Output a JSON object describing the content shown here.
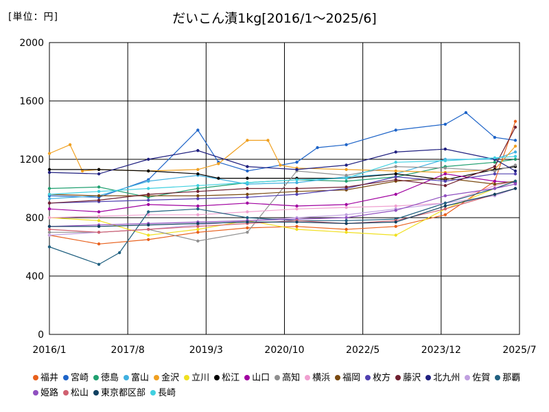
{
  "unit_label": "[単位：円]",
  "chart_data": {
    "type": "line",
    "title": "だいこん漬1kg[2016/1～2025/6]",
    "x_ticks": [
      "2016/1",
      "2017/8",
      "2019/3",
      "2020/10",
      "2022/5",
      "2023/12",
      "2025/7"
    ],
    "y_ticks": [
      0,
      400,
      800,
      1200,
      1600,
      2000
    ],
    "ylim": [
      0,
      2000
    ],
    "xlim": [
      "2016-01",
      "2025-07"
    ],
    "grid": true,
    "legend_position": "bottom",
    "series": [
      {
        "name": "福井",
        "color": "#e8601c",
        "points": [
          [
            "2016-01",
            680
          ],
          [
            "2017-01",
            620
          ],
          [
            "2018-01",
            650
          ],
          [
            "2019-01",
            700
          ],
          [
            "2020-01",
            730
          ],
          [
            "2021-01",
            740
          ],
          [
            "2022-01",
            720
          ],
          [
            "2023-01",
            740
          ],
          [
            "2024-01",
            820
          ],
          [
            "2025-01",
            1050
          ],
          [
            "2025-06",
            1460
          ]
        ]
      },
      {
        "name": "宮崎",
        "color": "#1e64c8",
        "points": [
          [
            "2016-01",
            950
          ],
          [
            "2017-01",
            940
          ],
          [
            "2018-01",
            1060
          ],
          [
            "2019-01",
            1400
          ],
          [
            "2019-06",
            1180
          ],
          [
            "2020-01",
            1120
          ],
          [
            "2021-01",
            1180
          ],
          [
            "2021-06",
            1280
          ],
          [
            "2022-01",
            1300
          ],
          [
            "2023-01",
            1400
          ],
          [
            "2024-01",
            1440
          ],
          [
            "2024-06",
            1520
          ],
          [
            "2025-01",
            1350
          ],
          [
            "2025-06",
            1330
          ]
        ]
      },
      {
        "name": "徳島",
        "color": "#20a070",
        "points": [
          [
            "2016-01",
            1000
          ],
          [
            "2017-01",
            1010
          ],
          [
            "2018-01",
            940
          ],
          [
            "2019-01",
            1000
          ],
          [
            "2020-01",
            1040
          ],
          [
            "2021-01",
            1060
          ],
          [
            "2022-01",
            1050
          ],
          [
            "2023-01",
            1080
          ],
          [
            "2024-01",
            1150
          ],
          [
            "2025-01",
            1180
          ],
          [
            "2025-06",
            1200
          ]
        ]
      },
      {
        "name": "富山",
        "color": "#40b0e0",
        "points": [
          [
            "2016-01",
            930
          ],
          [
            "2017-01",
            950
          ],
          [
            "2018-01",
            1050
          ],
          [
            "2019-01",
            1090
          ],
          [
            "2020-01",
            1030
          ],
          [
            "2021-01",
            1040
          ],
          [
            "2022-01",
            1080
          ],
          [
            "2023-01",
            1100
          ],
          [
            "2024-01",
            1200
          ],
          [
            "2025-01",
            1200
          ],
          [
            "2025-06",
            1250
          ]
        ]
      },
      {
        "name": "金沢",
        "color": "#f0a020",
        "points": [
          [
            "2016-01",
            1240
          ],
          [
            "2016-06",
            1300
          ],
          [
            "2016-09",
            1120
          ],
          [
            "2017-01",
            1130
          ],
          [
            "2018-01",
            1120
          ],
          [
            "2019-01",
            1130
          ],
          [
            "2019-06",
            1170
          ],
          [
            "2020-01",
            1330
          ],
          [
            "2020-06",
            1330
          ],
          [
            "2020-09",
            1160
          ],
          [
            "2021-01",
            1140
          ],
          [
            "2022-01",
            1130
          ],
          [
            "2023-01",
            1120
          ],
          [
            "2024-01",
            1110
          ],
          [
            "2025-01",
            1130
          ],
          [
            "2025-06",
            1290
          ]
        ]
      },
      {
        "name": "立川",
        "color": "#f0e020",
        "points": [
          [
            "2016-01",
            800
          ],
          [
            "2017-01",
            780
          ],
          [
            "2018-01",
            680
          ],
          [
            "2019-01",
            720
          ],
          [
            "2020-01",
            780
          ],
          [
            "2021-01",
            720
          ],
          [
            "2022-01",
            700
          ],
          [
            "2023-01",
            680
          ],
          [
            "2024-01",
            860
          ],
          [
            "2025-01",
            1000
          ],
          [
            "2025-06",
            1050
          ]
        ]
      },
      {
        "name": "松江",
        "color": "#000000",
        "points": [
          [
            "2016-01",
            1130
          ],
          [
            "2017-01",
            1130
          ],
          [
            "2018-01",
            1120
          ],
          [
            "2019-01",
            1100
          ],
          [
            "2019-06",
            1070
          ],
          [
            "2020-01",
            1070
          ],
          [
            "2021-01",
            1070
          ],
          [
            "2022-01",
            1070
          ],
          [
            "2023-01",
            1100
          ],
          [
            "2024-01",
            1060
          ],
          [
            "2025-01",
            1130
          ],
          [
            "2025-06",
            1150
          ]
        ]
      },
      {
        "name": "山口",
        "color": "#a000a0",
        "points": [
          [
            "2016-01",
            860
          ],
          [
            "2017-01",
            840
          ],
          [
            "2018-01",
            890
          ],
          [
            "2019-01",
            880
          ],
          [
            "2020-01",
            900
          ],
          [
            "2021-01",
            880
          ],
          [
            "2022-01",
            890
          ],
          [
            "2023-01",
            960
          ],
          [
            "2024-01",
            1100
          ],
          [
            "2025-01",
            1050
          ],
          [
            "2025-06",
            1040
          ]
        ]
      },
      {
        "name": "高知",
        "color": "#909090",
        "points": [
          [
            "2016-01",
            700
          ],
          [
            "2017-01",
            700
          ],
          [
            "2018-01",
            720
          ],
          [
            "2019-01",
            640
          ],
          [
            "2020-01",
            700
          ],
          [
            "2021-01",
            1120
          ],
          [
            "2022-01",
            1090
          ],
          [
            "2023-01",
            1150
          ],
          [
            "2024-01",
            1140
          ],
          [
            "2025-01",
            1120
          ],
          [
            "2025-06",
            1160
          ]
        ]
      },
      {
        "name": "横浜",
        "color": "#f0a0d0",
        "points": [
          [
            "2016-01",
            800
          ],
          [
            "2017-01",
            810
          ],
          [
            "2018-01",
            820
          ],
          [
            "2019-01",
            820
          ],
          [
            "2020-01",
            840
          ],
          [
            "2021-01",
            860
          ],
          [
            "2022-01",
            870
          ],
          [
            "2023-01",
            880
          ],
          [
            "2024-01",
            900
          ],
          [
            "2025-01",
            1020
          ],
          [
            "2025-06",
            1050
          ]
        ]
      },
      {
        "name": "福岡",
        "color": "#7a4a10",
        "points": [
          [
            "2016-01",
            960
          ],
          [
            "2017-01",
            950
          ],
          [
            "2018-01",
            950
          ],
          [
            "2019-01",
            950
          ],
          [
            "2020-01",
            960
          ],
          [
            "2021-01",
            980
          ],
          [
            "2022-01",
            990
          ],
          [
            "2023-01",
            1050
          ],
          [
            "2024-01",
            1070
          ],
          [
            "2025-01",
            1030
          ],
          [
            "2025-06",
            1050
          ]
        ]
      },
      {
        "name": "枚方",
        "color": "#5040b0",
        "points": [
          [
            "2016-01",
            900
          ],
          [
            "2017-01",
            910
          ],
          [
            "2018-01",
            920
          ],
          [
            "2019-01",
            930
          ],
          [
            "2020-01",
            940
          ],
          [
            "2021-01",
            960
          ],
          [
            "2022-01",
            1000
          ],
          [
            "2023-01",
            1080
          ],
          [
            "2024-01",
            1050
          ],
          [
            "2025-01",
            1100
          ],
          [
            "2025-06",
            1100
          ]
        ]
      },
      {
        "name": "藤沢",
        "color": "#702030",
        "points": [
          [
            "2016-01",
            900
          ],
          [
            "2017-01",
            920
          ],
          [
            "2018-01",
            960
          ],
          [
            "2019-01",
            980
          ],
          [
            "2020-01",
            1000
          ],
          [
            "2021-01",
            1000
          ],
          [
            "2022-01",
            1010
          ],
          [
            "2023-01",
            1060
          ],
          [
            "2024-01",
            1020
          ],
          [
            "2025-01",
            1150
          ],
          [
            "2025-06",
            1420
          ]
        ]
      },
      {
        "name": "北九州",
        "color": "#202080",
        "points": [
          [
            "2016-01",
            1110
          ],
          [
            "2017-01",
            1100
          ],
          [
            "2018-01",
            1200
          ],
          [
            "2019-01",
            1260
          ],
          [
            "2020-01",
            1150
          ],
          [
            "2021-01",
            1130
          ],
          [
            "2022-01",
            1160
          ],
          [
            "2023-01",
            1250
          ],
          [
            "2024-01",
            1270
          ],
          [
            "2025-01",
            1200
          ],
          [
            "2025-06",
            1120
          ]
        ]
      },
      {
        "name": "佐賀",
        "color": "#c0a0e0",
        "points": [
          [
            "2016-01",
            680
          ],
          [
            "2017-01",
            700
          ],
          [
            "2018-01",
            720
          ],
          [
            "2019-01",
            750
          ],
          [
            "2020-01",
            780
          ],
          [
            "2021-01",
            800
          ],
          [
            "2022-01",
            820
          ],
          [
            "2023-01",
            860
          ],
          [
            "2024-01",
            900
          ],
          [
            "2025-01",
            950
          ],
          [
            "2025-06",
            1000
          ]
        ]
      },
      {
        "name": "那覇",
        "color": "#206080",
        "points": [
          [
            "2016-01",
            600
          ],
          [
            "2017-01",
            480
          ],
          [
            "2017-06",
            560
          ],
          [
            "2018-01",
            840
          ],
          [
            "2019-01",
            860
          ],
          [
            "2020-01",
            800
          ],
          [
            "2021-01",
            780
          ],
          [
            "2022-01",
            780
          ],
          [
            "2023-01",
            790
          ],
          [
            "2024-01",
            900
          ],
          [
            "2025-01",
            1000
          ],
          [
            "2025-06",
            1050
          ]
        ]
      },
      {
        "name": "姫路",
        "color": "#9050c0",
        "points": [
          [
            "2016-01",
            740
          ],
          [
            "2017-01",
            750
          ],
          [
            "2018-01",
            760
          ],
          [
            "2019-01",
            770
          ],
          [
            "2020-01",
            780
          ],
          [
            "2021-01",
            790
          ],
          [
            "2022-01",
            800
          ],
          [
            "2023-01",
            850
          ],
          [
            "2024-01",
            950
          ],
          [
            "2025-01",
            1000
          ],
          [
            "2025-06",
            1030
          ]
        ]
      },
      {
        "name": "松山",
        "color": "#d06070",
        "points": [
          [
            "2016-01",
            720
          ],
          [
            "2017-01",
            700
          ],
          [
            "2018-01",
            720
          ],
          [
            "2019-01",
            740
          ],
          [
            "2020-01",
            760
          ],
          [
            "2021-01",
            780
          ],
          [
            "2022-01",
            760
          ],
          [
            "2023-01",
            780
          ],
          [
            "2024-01",
            860
          ],
          [
            "2025-01",
            960
          ],
          [
            "2025-06",
            1000
          ]
        ]
      },
      {
        "name": "東京都区部",
        "color": "#104060",
        "points": [
          [
            "2016-01",
            740
          ],
          [
            "2017-01",
            740
          ],
          [
            "2018-01",
            750
          ],
          [
            "2019-01",
            760
          ],
          [
            "2020-01",
            770
          ],
          [
            "2021-01",
            770
          ],
          [
            "2022-01",
            760
          ],
          [
            "2023-01",
            770
          ],
          [
            "2024-01",
            880
          ],
          [
            "2025-01",
            960
          ],
          [
            "2025-06",
            1000
          ]
        ]
      },
      {
        "name": "長崎",
        "color": "#40d0e0",
        "points": [
          [
            "2016-01",
            960
          ],
          [
            "2017-01",
            980
          ],
          [
            "2018-01",
            1000
          ],
          [
            "2019-01",
            1020
          ],
          [
            "2020-01",
            1040
          ],
          [
            "2021-01",
            1060
          ],
          [
            "2022-01",
            1070
          ],
          [
            "2023-01",
            1180
          ],
          [
            "2024-01",
            1190
          ],
          [
            "2025-01",
            1210
          ],
          [
            "2025-06",
            1220
          ]
        ]
      }
    ]
  }
}
